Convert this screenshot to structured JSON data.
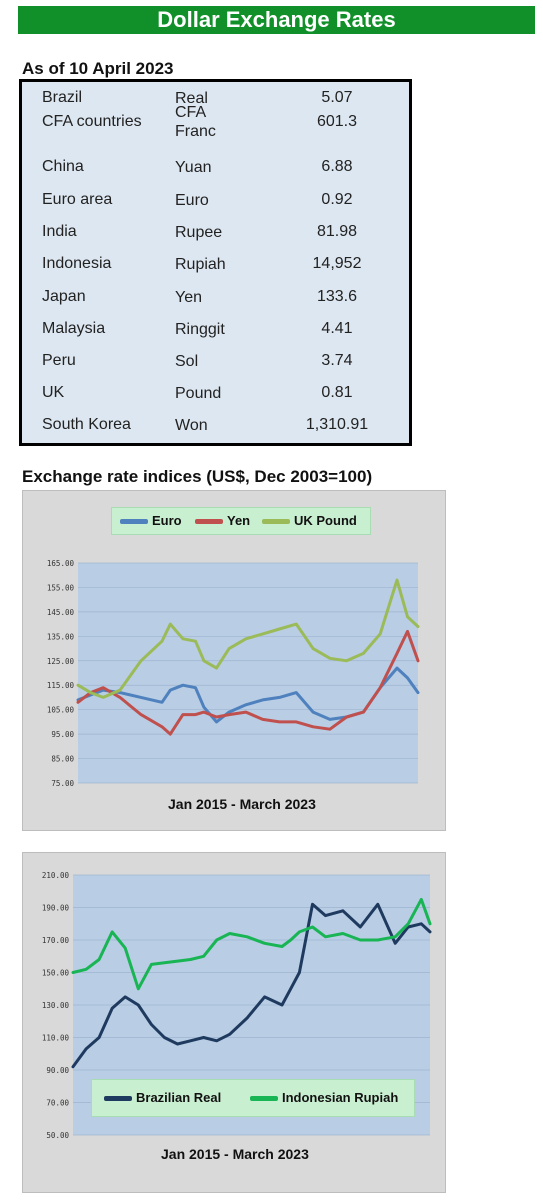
{
  "banner": {
    "title": "Dollar Exchange Rates"
  },
  "rates": {
    "as_of": "As of 10 April 2023",
    "rows": [
      {
        "country": "Brazil",
        "currency": "Real",
        "value": "5.07"
      },
      {
        "country": "CFA countries",
        "currency": "CFA Franc",
        "value": "601.3"
      },
      {
        "country": "China",
        "currency": "Yuan",
        "value": "6.88"
      },
      {
        "country": "Euro area",
        "currency": "Euro",
        "value": "0.92"
      },
      {
        "country": "India",
        "currency": "Rupee",
        "value": "81.98"
      },
      {
        "country": "Indonesia",
        "currency": "Rupiah",
        "value": "14,952"
      },
      {
        "country": "Japan",
        "currency": "Yen",
        "value": "133.6"
      },
      {
        "country": "Malaysia",
        "currency": "Ringgit",
        "value": "4.41"
      },
      {
        "country": "Peru",
        "currency": "Sol",
        "value": "3.74"
      },
      {
        "country": "UK",
        "currency": "Pound",
        "value": "0.81"
      },
      {
        "country": "South Korea",
        "currency": "Won",
        "value": "1,310.91"
      }
    ]
  },
  "indices": {
    "title": "Exchange rate indices (US$, Dec 2003=100)"
  },
  "chart_data": [
    {
      "type": "line",
      "title": "",
      "xlabel": "Jan 2015 -  March 2023",
      "ylabel": "",
      "ylim": [
        75,
        165
      ],
      "yticks": [
        "75.00",
        "85.00",
        "95.00",
        "105.00",
        "115.00",
        "125.00",
        "135.00",
        "145.00",
        "155.00",
        "165.00"
      ],
      "grid": true,
      "legend": "top",
      "x": [
        0,
        0.3,
        0.6,
        1,
        1.5,
        2,
        2.2,
        2.5,
        2.8,
        3,
        3.3,
        3.6,
        4,
        4.4,
        4.8,
        5.2,
        5.6,
        6,
        6.4,
        6.8,
        7.2,
        7.6,
        7.85,
        8.1
      ],
      "series": [
        {
          "name": "Euro",
          "color": "#4e81bd",
          "values": [
            109,
            111,
            113,
            112,
            110,
            108,
            113,
            115,
            114,
            106,
            100,
            104,
            107,
            109,
            110,
            112,
            104,
            101,
            102,
            104,
            114,
            122,
            118,
            112
          ]
        },
        {
          "name": "Yen",
          "color": "#c0504d",
          "values": [
            108,
            112,
            114,
            110,
            103,
            98,
            95,
            103,
            103,
            104,
            102,
            103,
            104,
            101,
            100,
            100,
            98,
            97,
            102,
            104,
            114,
            128,
            137,
            125
          ]
        },
        {
          "name": "UK Pound",
          "color": "#9bbb59",
          "values": [
            115,
            112,
            110,
            113,
            125,
            133,
            140,
            134,
            133,
            125,
            122,
            130,
            134,
            136,
            138,
            140,
            130,
            126,
            125,
            128,
            136,
            158,
            143,
            139
          ]
        }
      ]
    },
    {
      "type": "line",
      "title": "",
      "xlabel": "Jan 2015 - March  2023",
      "ylabel": "",
      "ylim": [
        50,
        210
      ],
      "yticks": [
        "50.00",
        "70.00",
        "90.00",
        "110.00",
        "130.00",
        "150.00",
        "170.00",
        "190.00",
        "210.00"
      ],
      "grid": true,
      "legend": "bottom",
      "x": [
        0,
        0.3,
        0.6,
        0.9,
        1.2,
        1.5,
        1.8,
        2.1,
        2.4,
        2.7,
        3,
        3.3,
        3.6,
        4,
        4.4,
        4.8,
        5,
        5.2,
        5.5,
        5.8,
        6.2,
        6.6,
        7,
        7.4,
        7.7,
        8,
        8.2
      ],
      "series": [
        {
          "name": "Brazilian Real",
          "color": "#1f3a5f",
          "values": [
            92,
            103,
            110,
            128,
            135,
            130,
            118,
            110,
            106,
            108,
            110,
            108,
            112,
            122,
            135,
            130,
            140,
            150,
            192,
            185,
            188,
            178,
            192,
            168,
            178,
            180,
            175
          ]
        },
        {
          "name": "Indonesian Rupiah",
          "color": "#19b554",
          "values": [
            150,
            152,
            158,
            175,
            165,
            140,
            155,
            156,
            157,
            158,
            160,
            170,
            174,
            172,
            168,
            166,
            170,
            175,
            178,
            172,
            174,
            170,
            170,
            172,
            180,
            195,
            180
          ]
        }
      ]
    }
  ]
}
